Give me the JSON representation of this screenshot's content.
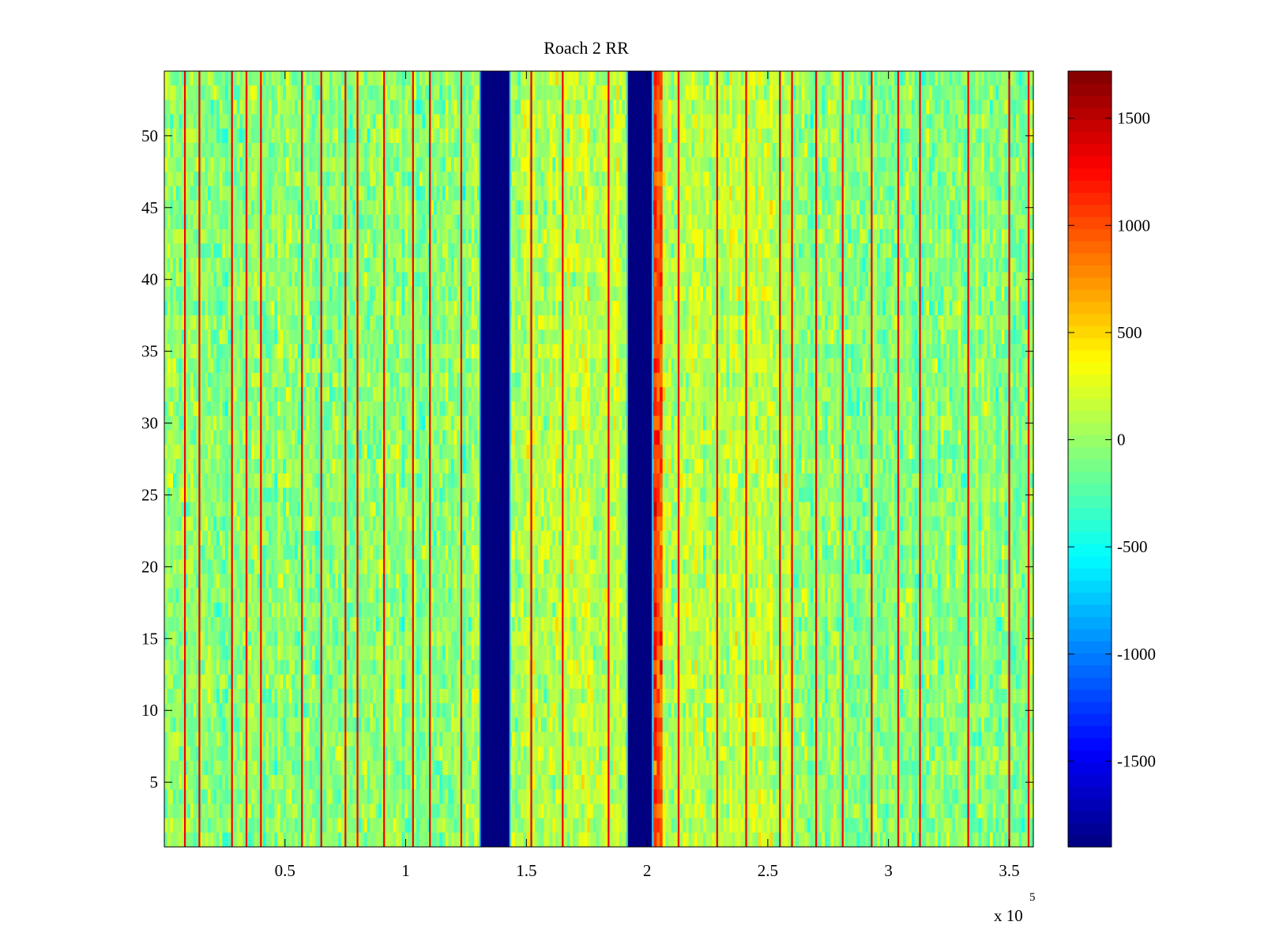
{
  "chart_data": {
    "type": "heatmap",
    "title": "Roach 2 RR",
    "xlabel": "",
    "ylabel": "",
    "x_exponent_label": "x 10",
    "x_exponent_power": "5",
    "xlim": [
      0,
      360000
    ],
    "ylim": [
      0.5,
      54.5
    ],
    "x_ticks": [
      {
        "value": 50000,
        "label": "0.5"
      },
      {
        "value": 100000,
        "label": "1"
      },
      {
        "value": 150000,
        "label": "1.5"
      },
      {
        "value": 200000,
        "label": "2"
      },
      {
        "value": 250000,
        "label": "2.5"
      },
      {
        "value": 300000,
        "label": "3"
      },
      {
        "value": 350000,
        "label": "3.5"
      }
    ],
    "y_ticks": [
      {
        "value": 5,
        "label": "5"
      },
      {
        "value": 10,
        "label": "10"
      },
      {
        "value": 15,
        "label": "15"
      },
      {
        "value": 20,
        "label": "20"
      },
      {
        "value": 25,
        "label": "25"
      },
      {
        "value": 30,
        "label": "30"
      },
      {
        "value": 35,
        "label": "35"
      },
      {
        "value": 40,
        "label": "40"
      },
      {
        "value": 45,
        "label": "45"
      },
      {
        "value": 50,
        "label": "50"
      }
    ],
    "colorbar": {
      "colormap": "jet",
      "clim": [
        -1900,
        1720
      ],
      "ticks": [
        {
          "value": 1500,
          "label": "1500"
        },
        {
          "value": 1000,
          "label": "1000"
        },
        {
          "value": 500,
          "label": "500"
        },
        {
          "value": 0,
          "label": "0"
        },
        {
          "value": -500,
          "label": "-500"
        },
        {
          "value": -1000,
          "label": "-1000"
        },
        {
          "value": -1500,
          "label": "-1500"
        }
      ]
    },
    "rows": 54,
    "background_level": -50,
    "noise_amplitude": 260,
    "blanked_bands": [
      {
        "x_start": 131000,
        "x_end": 143000,
        "value": -1900
      },
      {
        "x_start": 192000,
        "x_end": 202000,
        "value": -1900
      }
    ],
    "warm_regions": [
      {
        "x_start": 143000,
        "x_end": 192000,
        "offset": 170
      },
      {
        "x_start": 202000,
        "x_end": 206000,
        "offset": 1000
      },
      {
        "x_start": 206000,
        "x_end": 260000,
        "offset": 150
      }
    ],
    "hot_lines_x": [
      8500,
      14500,
      28000,
      34000,
      40000,
      57000,
      65000,
      75000,
      80000,
      91000,
      103000,
      110000,
      123000,
      152000,
      165000,
      184000,
      213000,
      229000,
      241000,
      255000,
      260000,
      270000,
      281000,
      293000,
      304000,
      313000,
      333000,
      350000,
      358000
    ],
    "hot_line_value": 1300
  }
}
